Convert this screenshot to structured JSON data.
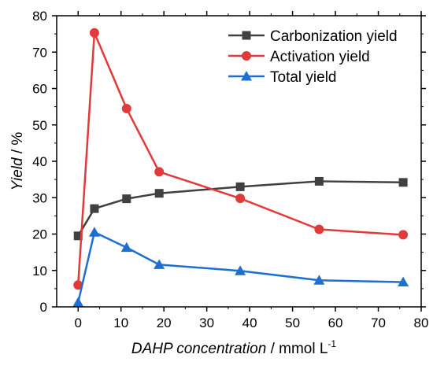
{
  "chart_data": {
    "type": "line",
    "xlabel": {
      "italic": "DAHP concentration",
      "unit": " / mmol L",
      "sup": "-1"
    },
    "ylabel": {
      "italic": "Yield",
      "unit": " / %"
    },
    "xlim": [
      -5,
      80
    ],
    "ylim": [
      0,
      80
    ],
    "xticks": [
      0,
      10,
      20,
      30,
      40,
      50,
      60,
      70,
      80
    ],
    "yticks": [
      0,
      10,
      20,
      30,
      40,
      50,
      60,
      70,
      80
    ],
    "grid": false,
    "legend_position": "top-right",
    "x": [
      0,
      3.8,
      11.3,
      18.9,
      37.8,
      56.2,
      75.8
    ],
    "series": [
      {
        "name": "Carbonization yield",
        "color": "#404040",
        "marker": "square",
        "values": [
          19.5,
          27.0,
          29.7,
          31.2,
          33.0,
          34.5,
          34.2
        ]
      },
      {
        "name": "Activation yield",
        "color": "#e03a3a",
        "marker": "circle",
        "values": [
          6.0,
          75.3,
          54.5,
          37.1,
          29.8,
          21.3,
          19.8
        ]
      },
      {
        "name": "Total yield",
        "color": "#1f6fd1",
        "marker": "triangle",
        "values": [
          1.2,
          20.5,
          16.3,
          11.6,
          9.9,
          7.3,
          6.8
        ]
      }
    ]
  }
}
